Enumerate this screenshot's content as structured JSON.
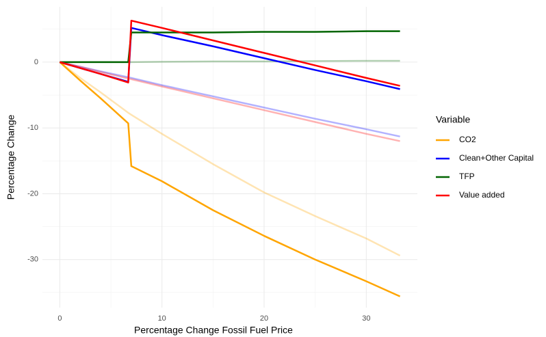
{
  "chart_data": {
    "type": "line",
    "x_label": "Percentage Change Fossil Fuel Price",
    "y_label": "Percentage Change",
    "legend_title": "Variable",
    "legend_position": "right",
    "grid": true,
    "baseline_opacity": 0.3,
    "x": [
      0,
      2,
      4,
      6.7,
      7,
      10,
      15,
      20,
      25,
      30,
      33.3
    ],
    "xlim": [
      -1.7,
      35
    ],
    "ylim": [
      -37.3,
      8.4
    ],
    "xticks": [
      0,
      10,
      20,
      30
    ],
    "yticks": [
      -30,
      -20,
      -10,
      0
    ],
    "xminorticks": [
      5,
      15,
      25
    ],
    "yminorticks": [
      -35,
      -25,
      -15,
      -5,
      5
    ],
    "series": [
      {
        "name": "CO2",
        "color": "#ffa500",
        "values": [
          0,
          -2.8,
          -5.5,
          -9.3,
          -15.8,
          -18.1,
          -22.5,
          -26.4,
          -30.0,
          -33.3,
          -35.6
        ],
        "baseline_values": [
          0,
          -2.4,
          -4.6,
          -7.7,
          -8.0,
          -10.9,
          -15.5,
          -19.8,
          -23.4,
          -26.8,
          -29.4
        ]
      },
      {
        "name": "Clean+Other Capital",
        "color": "#0000ff",
        "values": [
          0,
          -0.9,
          -1.8,
          -3.0,
          5.2,
          4.1,
          2.4,
          0.6,
          -1.2,
          -2.9,
          -4.1
        ],
        "baseline_values": [
          0,
          -0.7,
          -1.4,
          -2.3,
          -2.4,
          -3.5,
          -5.2,
          -6.9,
          -8.6,
          -10.2,
          -11.3
        ]
      },
      {
        "name": "TFP",
        "color": "#006400",
        "values": [
          0,
          0,
          0,
          0,
          4.5,
          4.5,
          4.5,
          4.6,
          4.6,
          4.7,
          4.7
        ],
        "baseline_values": [
          0,
          0,
          0,
          0,
          0,
          0.05,
          0.1,
          0.1,
          0.15,
          0.2,
          0.2
        ]
      },
      {
        "name": "Value added",
        "color": "#ff0000",
        "values": [
          0,
          -0.9,
          -1.8,
          -3.1,
          6.3,
          5.2,
          3.3,
          1.4,
          -0.5,
          -2.4,
          -3.6
        ],
        "baseline_values": [
          0,
          -0.7,
          -1.5,
          -2.5,
          -2.6,
          -3.7,
          -5.5,
          -7.3,
          -9.1,
          -10.9,
          -12.0
        ]
      }
    ]
  }
}
